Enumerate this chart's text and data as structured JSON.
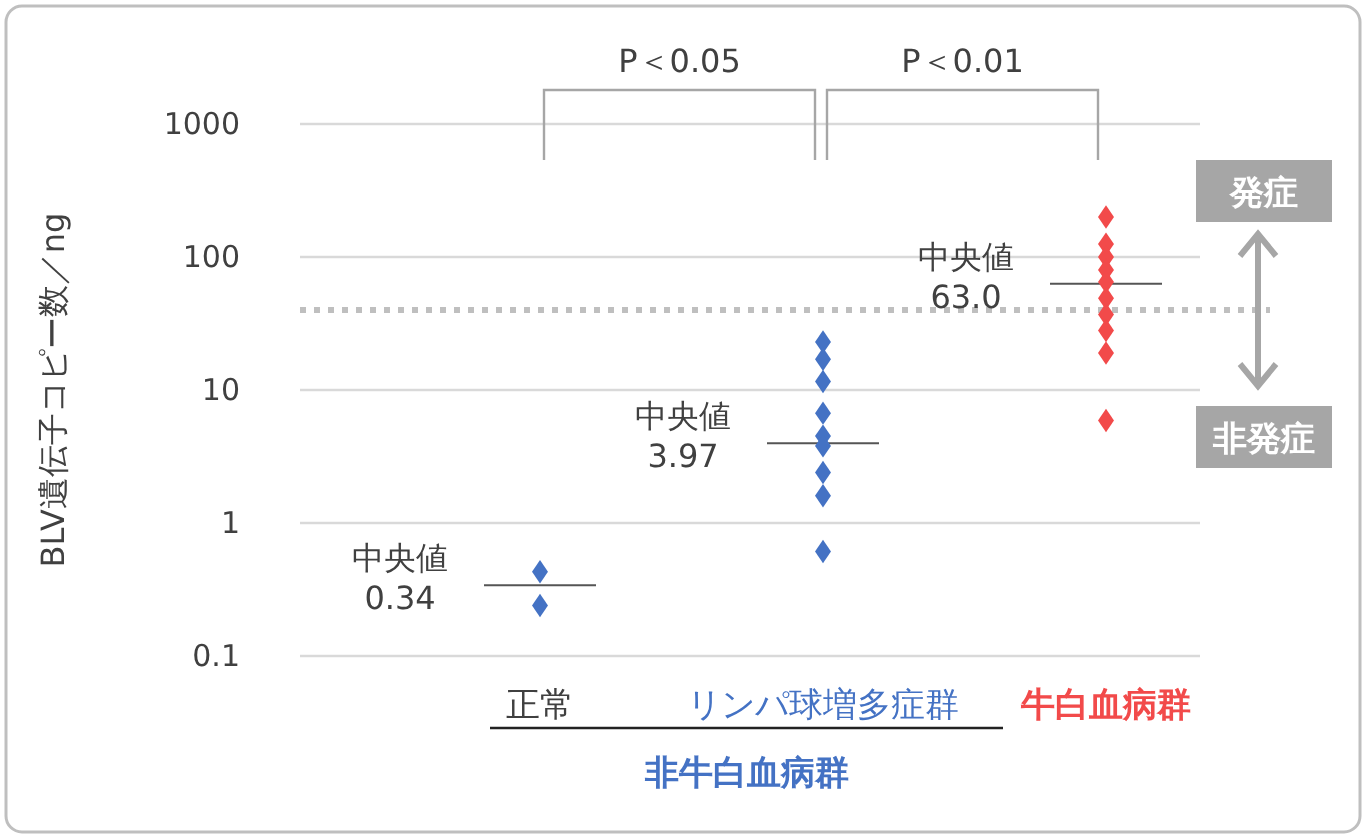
{
  "chart_data": {
    "type": "scatter",
    "ylabel": "BLV遺伝子コピー数／ng",
    "categories": [
      "正常",
      "リンパ球増多症群",
      "牛白血病群"
    ],
    "series": [
      {
        "name": "非牛白血病群",
        "color": "#4472c4",
        "x": [
          "正常",
          "正常",
          "リンパ球増多症群",
          "リンパ球増多症群",
          "リンパ球増多症群",
          "リンパ球増多症群",
          "リンパ球増多症群",
          "リンパ球増多症群",
          "リンパ球増多症群",
          "リンパ球増多症群",
          "リンパ球増多症群"
        ],
        "values": [
          0.43,
          0.24,
          23,
          17,
          11.6,
          6.7,
          4.5,
          3.8,
          2.4,
          1.6,
          0.61
        ]
      },
      {
        "color": "#f24a4a",
        "x": [
          "牛白血病群",
          "牛白血病群",
          "牛白血病群",
          "牛白血病群",
          "牛白血病群",
          "牛白血病群",
          "牛白血病群",
          "牛白血病群",
          "牛白血病群",
          "牛白血病群"
        ],
        "values": [
          200,
          125,
          100,
          80,
          65,
          49,
          37,
          28,
          19,
          5.9
        ]
      }
    ],
    "marker": "diamond",
    "log": true,
    "grid": "y",
    "ylim": [
      0.1,
      1000
    ],
    "yticks": [
      0.1,
      1,
      10,
      100,
      1000
    ],
    "ref_lines": [
      {
        "axis": "y",
        "value": 40,
        "color": "#bfbfbf",
        "line_style": "dotted"
      }
    ],
    "annotations": [
      {
        "text": "中央値\n0.34",
        "x": "正常",
        "y": 0.34
      },
      {
        "text": "中央値\n3.97",
        "x": "リンパ球増多症群",
        "y": 3.97
      },
      {
        "text": "中央値\n63.0",
        "x": "牛白血病群",
        "y": 63.0
      },
      "P＜0.05",
      "P＜0.01",
      "発症",
      "非発症"
    ]
  }
}
